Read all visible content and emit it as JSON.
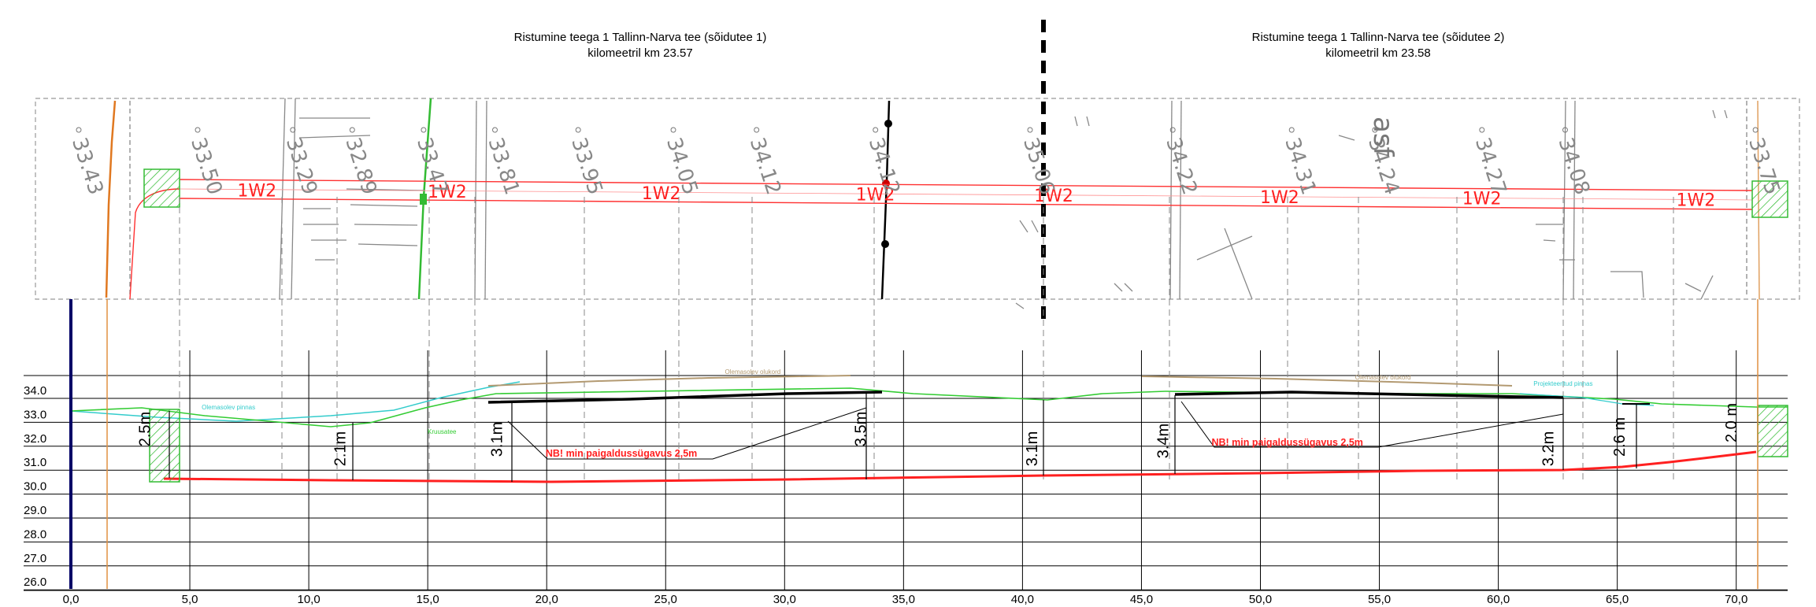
{
  "header": {
    "left_title_line1": "Ristumine teega 1 Tallinn-Narva tee (sõidutee 1)",
    "left_title_line2": "kilomeetril km 23.57",
    "right_title_line1": "Ristumine teega 1 Tallinn-Narva tee (sõidutee 2)",
    "right_title_line2": "kilomeetril km 23.58"
  },
  "plan": {
    "pipe_label": "1W2",
    "pipe_label_positions_m": [
      7.0,
      15.0,
      24.0,
      33.0,
      40.5,
      50.0,
      58.5,
      67.5
    ],
    "elevation_labels": [
      {
        "text": "33.43",
        "x_m": 0.0
      },
      {
        "text": "33.50",
        "x_m": 5.0
      },
      {
        "text": "33.29",
        "x_m": 9.0
      },
      {
        "text": "32.89",
        "x_m": 11.5
      },
      {
        "text": "33.47",
        "x_m": 14.5
      },
      {
        "text": "33.81",
        "x_m": 17.5
      },
      {
        "text": "33.95",
        "x_m": 21.0
      },
      {
        "text": "34.05",
        "x_m": 25.0
      },
      {
        "text": "34.12",
        "x_m": 28.5
      },
      {
        "text": "34.12",
        "x_m": 33.5
      },
      {
        "text": "35.06",
        "x_m": 40.0
      },
      {
        "text": "34.22",
        "x_m": 46.0
      },
      {
        "text": "34.31",
        "x_m": 51.0
      },
      {
        "text": "34.24",
        "x_m": 54.5
      },
      {
        "text": "34.27",
        "x_m": 59.0
      },
      {
        "text": "34.08",
        "x_m": 62.5
      },
      {
        "text": "33.75",
        "x_m": 70.5
      }
    ],
    "asf_label": "asf"
  },
  "profile": {
    "y_ticks": [
      "34.0",
      "33.0",
      "32.0",
      "31.0",
      "30.0",
      "29.0",
      "28.0",
      "27.0",
      "26.0"
    ],
    "x_ticks": [
      "0,0",
      "5,0",
      "10,0",
      "15,0",
      "20,0",
      "25,0",
      "30,0",
      "35,0",
      "40,0",
      "45,0",
      "50,0",
      "55,0",
      "60,0",
      "65,0",
      "70,0"
    ],
    "depth_labels": [
      {
        "text": "2.5m",
        "x_m": 3.5
      },
      {
        "text": "2.1m",
        "x_m": 11.7
      },
      {
        "text": "3.1m",
        "x_m": 18.3
      },
      {
        "text": "3.5m",
        "x_m": 33.6
      },
      {
        "text": "3.1m",
        "x_m": 40.8
      },
      {
        "text": "3.4m",
        "x_m": 46.3
      },
      {
        "text": "3.2m",
        "x_m": 62.5
      },
      {
        "text": "2.6 m",
        "x_m": 65.5
      },
      {
        "text": "2.0 m",
        "x_m": 70.2
      }
    ],
    "notes": [
      {
        "text": "NB! min paigaldussügavus 2,5m",
        "x_m": 20.5
      },
      {
        "text": "NB! min paigaldussügavus 2,5m",
        "x_m": 48.5
      }
    ],
    "small_labels": [
      {
        "text": "Olemasolev olukord",
        "x_m": 27.5
      },
      {
        "text": "Olemasolev olukord",
        "x_m": 54.0
      },
      {
        "text": "Projekteeritud pinnas",
        "x_m": 61.5
      },
      {
        "text": "Olemasolev pinnas",
        "x_m": 5.5
      },
      {
        "text": "Kruusatee",
        "x_m": 15.0
      }
    ],
    "colors": {
      "pipe": "#ff0000",
      "ground_green": "#33cc33",
      "ground_cyan": "#33cccc",
      "existing_road": "#b39a72",
      "design_road": "#000000",
      "vertical_axis": "#000066"
    }
  }
}
